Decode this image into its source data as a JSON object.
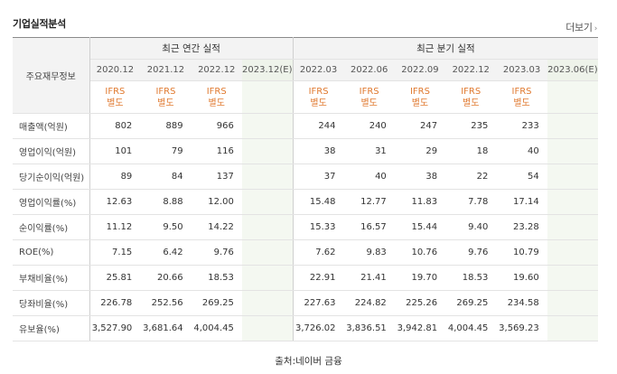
{
  "header": {
    "title": "기업실적분석",
    "more_label": "더보기"
  },
  "table": {
    "row_header": "주요재무정보",
    "groups": [
      "최근 연간 실적",
      "최근 분기 실적"
    ],
    "annual_periods": [
      "2020.12",
      "2021.12",
      "2022.12",
      "2023.12(E)"
    ],
    "quarter_periods": [
      "2022.03",
      "2022.06",
      "2022.09",
      "2022.12",
      "2023.03",
      "2023.06(E)"
    ],
    "ifrs_line1": "IFRS",
    "ifrs_line2": "별도",
    "rows": [
      {
        "label": "매출액(억원)",
        "values": [
          "802",
          "889",
          "966",
          "",
          "244",
          "240",
          "247",
          "235",
          "233",
          ""
        ]
      },
      {
        "label": "영업이익(억원)",
        "values": [
          "101",
          "79",
          "116",
          "",
          "38",
          "31",
          "29",
          "18",
          "40",
          ""
        ]
      },
      {
        "label": "당기순이익(억원)",
        "values": [
          "89",
          "84",
          "137",
          "",
          "37",
          "40",
          "38",
          "22",
          "54",
          ""
        ]
      },
      {
        "label": "영업이익률(%)",
        "values": [
          "12.63",
          "8.88",
          "12.00",
          "",
          "15.48",
          "12.77",
          "11.83",
          "7.78",
          "17.14",
          ""
        ]
      },
      {
        "label": "순이익률(%)",
        "values": [
          "11.12",
          "9.50",
          "14.22",
          "",
          "15.33",
          "16.57",
          "15.44",
          "9.40",
          "23.28",
          ""
        ]
      },
      {
        "label": "ROE(%)",
        "values": [
          "7.15",
          "6.42",
          "9.76",
          "",
          "7.62",
          "9.83",
          "10.76",
          "9.76",
          "10.79",
          ""
        ]
      },
      {
        "label": "부채비율(%)",
        "values": [
          "25.81",
          "20.66",
          "18.53",
          "",
          "22.91",
          "21.41",
          "19.70",
          "18.53",
          "19.60",
          ""
        ]
      },
      {
        "label": "당좌비율(%)",
        "values": [
          "226.78",
          "252.56",
          "269.25",
          "",
          "227.63",
          "224.82",
          "225.26",
          "269.25",
          "234.58",
          ""
        ]
      },
      {
        "label": "유보율(%)",
        "values": [
          "3,527.90",
          "3,681.64",
          "4,004.45",
          "",
          "3,726.02",
          "3,836.51",
          "3,942.81",
          "4,004.45",
          "3,569.23",
          ""
        ]
      }
    ]
  },
  "source": "출처:네이버 금융",
  "colors": {
    "ifrs_text": "#e07a30",
    "estimate_bg": "#f4f8f1",
    "header_bg": "#f3f3f3"
  }
}
